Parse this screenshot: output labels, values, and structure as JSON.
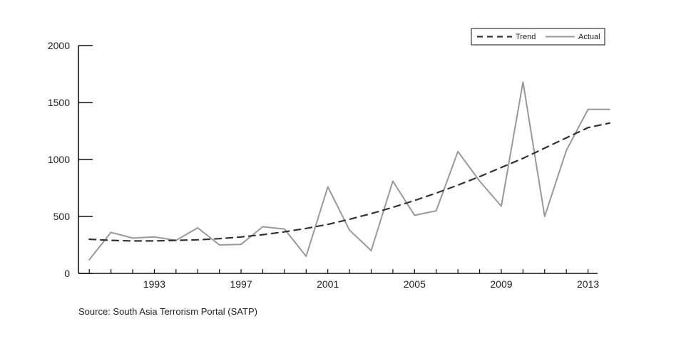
{
  "chart_data": {
    "type": "line",
    "title": "",
    "xlabel": "",
    "ylabel": "",
    "xlim": [
      1989.5,
      2014
    ],
    "ylim": [
      0,
      2000
    ],
    "yticks": [
      0,
      500,
      1000,
      1500,
      2000
    ],
    "xtick_labels": [
      "1993",
      "1997",
      "2001",
      "2005",
      "2009",
      "2013"
    ],
    "x_minor_ticks": [
      1990,
      1991,
      1992,
      1993,
      1994,
      1995,
      1996,
      1997,
      1998,
      1999,
      2000,
      2001,
      2002,
      2003,
      2004,
      2005,
      2006,
      2007,
      2008,
      2009,
      2010,
      2011,
      2012,
      2013
    ],
    "grid": false,
    "legend_position": "top-right",
    "series": [
      {
        "name": "Actual",
        "color": "#999999",
        "style": "solid",
        "x": [
          1990,
          1991,
          1992,
          1993,
          1994,
          1995,
          1996,
          1997,
          1998,
          1999,
          2000,
          2001,
          2002,
          2003,
          2004,
          2005,
          2006,
          2007,
          2008,
          2009,
          2010,
          2011,
          2012,
          2013,
          2014
        ],
        "values": [
          120,
          360,
          310,
          320,
          290,
          400,
          250,
          255,
          410,
          390,
          150,
          760,
          380,
          200,
          810,
          510,
          550,
          1070,
          810,
          590,
          1680,
          500,
          1080,
          1440,
          1440
        ]
      },
      {
        "name": "Trend",
        "color": "#333333",
        "style": "dashed",
        "x": [
          1990,
          1991,
          1992,
          1993,
          1994,
          1995,
          1996,
          1997,
          1998,
          1999,
          2000,
          2001,
          2002,
          2003,
          2004,
          2005,
          2006,
          2007,
          2008,
          2009,
          2010,
          2011,
          2012,
          2013,
          2014
        ],
        "values": [
          300,
          290,
          285,
          285,
          290,
          295,
          305,
          320,
          340,
          365,
          395,
          430,
          475,
          525,
          580,
          640,
          705,
          775,
          850,
          930,
          1010,
          1100,
          1190,
          1280,
          1320
        ]
      }
    ]
  },
  "source_text": "Source: South Asia Terrorism Portal (SATP)"
}
